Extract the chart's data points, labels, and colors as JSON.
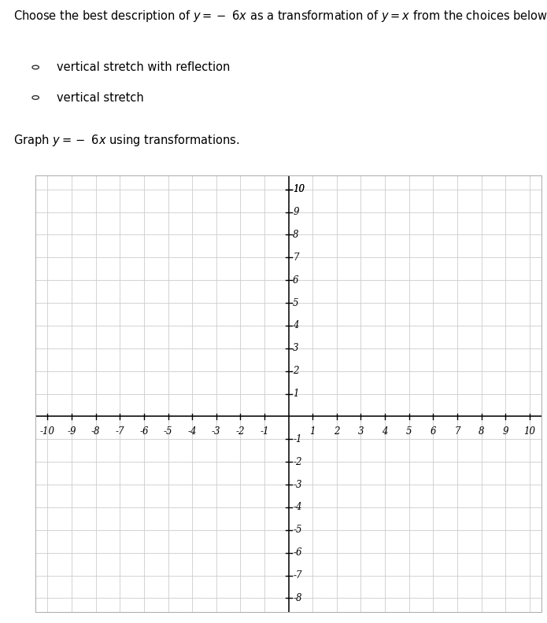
{
  "title_text": "Choose the best description of $y = -\\ 6x$ as a transformation of $y = x$ from the choices below.",
  "choice1": "vertical stretch with reflection",
  "choice2": "vertical stretch",
  "graph_label_prefix": "Graph $y = -\\ 6x$ using transformations.",
  "xlim": [
    -10.5,
    10.5
  ],
  "ylim": [
    -8.6,
    10.6
  ],
  "xticks": [
    -10,
    -9,
    -8,
    -7,
    -6,
    -5,
    -4,
    -3,
    -2,
    -1,
    1,
    2,
    3,
    4,
    5,
    6,
    7,
    8,
    9,
    10
  ],
  "yticks": [
    -8,
    -7,
    -6,
    -5,
    -4,
    -3,
    -2,
    -1,
    1,
    2,
    3,
    4,
    5,
    6,
    7,
    8,
    9,
    10
  ],
  "grid_color": "#cccccc",
  "axis_color": "#000000",
  "bg_color": "#ffffff",
  "tick_font_size": 8.5,
  "title_font_size": 10.5,
  "label_font_size": 10.5
}
